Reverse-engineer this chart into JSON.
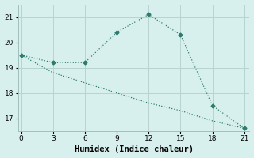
{
  "xlabel": "Humidex (Indice chaleur)",
  "line1_x": [
    0,
    3,
    6,
    9,
    12,
    15,
    18,
    21
  ],
  "line1_y": [
    19.5,
    19.2,
    19.2,
    20.4,
    21.1,
    20.3,
    17.5,
    16.6
  ],
  "line2_x": [
    0,
    3,
    6,
    9,
    12,
    15,
    18,
    21
  ],
  "line2_y": [
    19.5,
    18.8,
    18.4,
    18.0,
    17.6,
    17.3,
    16.9,
    16.6
  ],
  "line_color": "#2d7a6e",
  "bg_color": "#d8f0ed",
  "grid_color": "#b8d4d0",
  "spine_color": "#a0c0bc",
  "ylim": [
    16.5,
    21.5
  ],
  "xlim": [
    -0.3,
    21.5
  ],
  "yticks": [
    17,
    18,
    19,
    20,
    21
  ],
  "xticks": [
    0,
    3,
    6,
    9,
    12,
    15,
    18,
    21
  ],
  "tick_fontsize": 6.5,
  "label_fontsize": 7.5
}
